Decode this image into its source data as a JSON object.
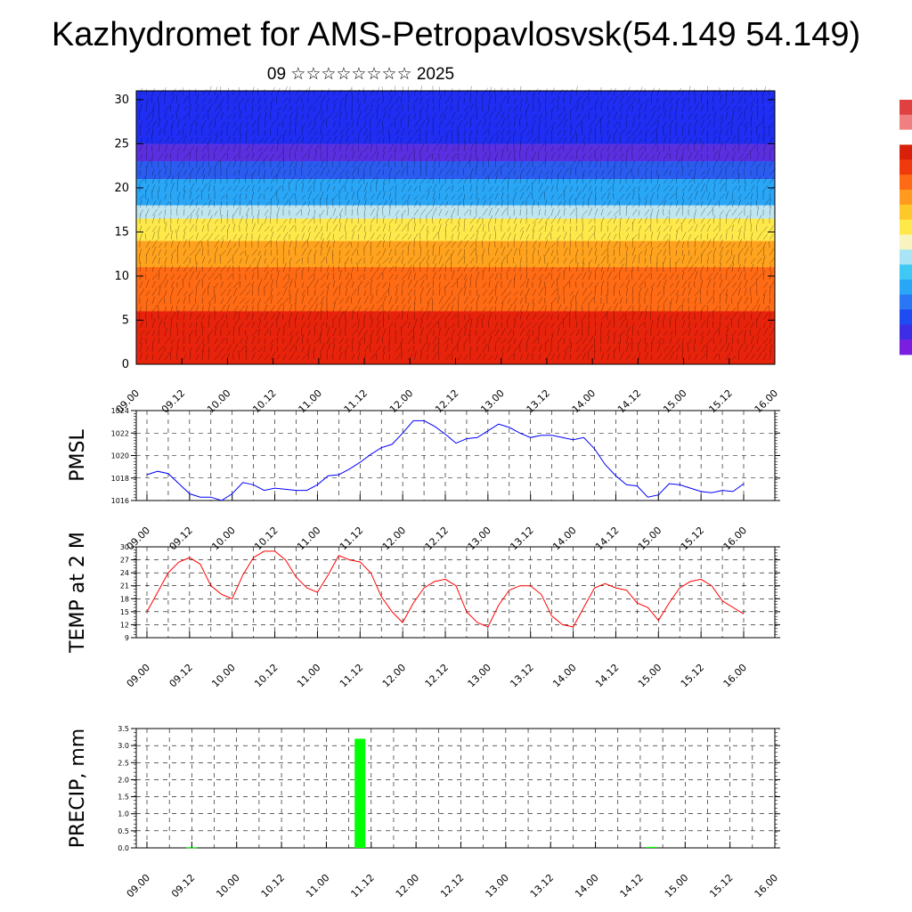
{
  "header": {
    "title": "Kazhydromet for AMS-Petropavlosvsk(54.149 54.149)",
    "subtitle": "09 ☆☆☆☆☆☆☆☆ 2025"
  },
  "colors": {
    "pmsl_line": "#0000ff",
    "temp_line": "#ff0000",
    "precip_bar": "#00ff00",
    "grid": "#000000",
    "colorbar": [
      "#7a1fe0",
      "#3d2ee6",
      "#1f4cf2",
      "#2a76f5",
      "#2aa6f7",
      "#40c8f5",
      "#a8e4f5",
      "#f8f4c0",
      "#ffe94a",
      "#ffc82a",
      "#ff9a1e",
      "#ff6a14",
      "#f03a0e",
      "#d8200a",
      "#ffffff",
      "#f08080",
      "#e04040"
    ]
  },
  "chart_data": [
    {
      "type": "heatmap",
      "name": "cross-section",
      "title": "",
      "xlabel": "",
      "ylabel": "",
      "x_ticks": [
        "09.00",
        "09.12",
        "10.00",
        "10.12",
        "11.00",
        "11.12",
        "12.00",
        "12.12",
        "13.00",
        "13.12",
        "14.00",
        "14.12",
        "15.00",
        "15.12",
        "16.00"
      ],
      "y_ticks": [
        "0",
        "5",
        "10",
        "15",
        "20",
        "25",
        "30"
      ],
      "ylim": [
        0,
        31
      ],
      "bands": [
        {
          "from": 0,
          "to": 6,
          "color": "#e8230c"
        },
        {
          "from": 6,
          "to": 11,
          "color": "#ff6a14"
        },
        {
          "from": 11,
          "to": 14,
          "color": "#ffa21e"
        },
        {
          "from": 14,
          "to": 16.5,
          "color": "#ffe94a"
        },
        {
          "from": 16.5,
          "to": 18,
          "color": "#bfe6f0"
        },
        {
          "from": 18,
          "to": 21,
          "color": "#2aa6f7"
        },
        {
          "from": 21,
          "to": 23,
          "color": "#2a5cf0"
        },
        {
          "from": 23,
          "to": 25,
          "color": "#5a2fe0"
        },
        {
          "from": 25,
          "to": 31,
          "color": "#1f2ef2"
        }
      ]
    },
    {
      "type": "line",
      "name": "pmsl",
      "ylabel": "PMSL",
      "ylim": [
        1016,
        1024
      ],
      "y_ticks": [
        "1016",
        "1018",
        "1020",
        "1022",
        "1024"
      ],
      "x_ticks": [
        "09.00",
        "09.12",
        "10.00",
        "10.12",
        "11.00",
        "11.12",
        "12.00",
        "12.12",
        "13.00",
        "13.12",
        "14.00",
        "14.12",
        "15.00",
        "15.12",
        "16.00"
      ],
      "x": [
        0,
        3,
        6,
        9,
        12,
        15,
        18,
        21,
        24,
        27,
        30,
        33,
        36,
        39,
        42,
        45,
        48,
        51,
        54,
        57,
        60,
        63,
        66,
        69,
        72,
        75,
        78,
        81,
        84,
        87,
        90,
        93,
        96,
        99,
        102,
        105,
        108,
        111,
        114,
        117,
        120,
        123,
        126,
        129,
        132,
        135,
        138,
        141,
        144,
        147,
        150,
        153,
        156,
        159,
        162,
        165,
        168
      ],
      "values": [
        1018.3,
        1018.6,
        1018.4,
        1017.5,
        1016.6,
        1016.3,
        1016.3,
        1016.0,
        1016.6,
        1017.6,
        1017.4,
        1016.9,
        1017.1,
        1017.0,
        1016.9,
        1016.9,
        1017.4,
        1018.2,
        1018.3,
        1018.8,
        1019.4,
        1020.1,
        1020.7,
        1021.0,
        1022.0,
        1023.1,
        1023.1,
        1022.6,
        1021.9,
        1021.1,
        1021.5,
        1021.6,
        1022.2,
        1022.8,
        1022.5,
        1022.0,
        1021.6,
        1021.8,
        1021.8,
        1021.6,
        1021.4,
        1021.6,
        1020.6,
        1019.2,
        1018.2,
        1017.4,
        1017.3,
        1016.3,
        1016.5,
        1017.5,
        1017.4,
        1017.1,
        1016.8,
        1016.7,
        1016.9,
        1016.8,
        1017.5
      ]
    },
    {
      "type": "line",
      "name": "temp",
      "ylabel": "TEMP at 2 M",
      "ylim": [
        9,
        30
      ],
      "y_ticks": [
        "9",
        "12",
        "15",
        "18",
        "21",
        "24",
        "27",
        "30"
      ],
      "x_ticks": [
        "09.00",
        "09.12",
        "10.00",
        "10.12",
        "11.00",
        "11.12",
        "12.00",
        "12.12",
        "13.00",
        "13.12",
        "14.00",
        "14.12",
        "15.00",
        "15.12",
        "16.00"
      ],
      "x": [
        0,
        3,
        6,
        9,
        12,
        15,
        18,
        21,
        24,
        27,
        30,
        33,
        36,
        39,
        42,
        45,
        48,
        51,
        54,
        57,
        60,
        63,
        66,
        69,
        72,
        75,
        78,
        81,
        84,
        87,
        90,
        93,
        96,
        99,
        102,
        105,
        108,
        111,
        114,
        117,
        120,
        123,
        126,
        129,
        132,
        135,
        138,
        141,
        144,
        147,
        150,
        153,
        156,
        159,
        162,
        165,
        168
      ],
      "values": [
        15.0,
        19.5,
        24.0,
        26.5,
        27.5,
        26.0,
        21.0,
        19.0,
        18.0,
        23.5,
        27.5,
        29.0,
        29.0,
        27.0,
        23.0,
        20.5,
        19.5,
        23.5,
        28.0,
        27.0,
        26.5,
        24.0,
        18.5,
        15.0,
        12.5,
        17.0,
        20.5,
        22.0,
        22.5,
        21.0,
        15.0,
        12.5,
        11.5,
        16.5,
        20.0,
        21.0,
        21.0,
        19.0,
        14.0,
        12.0,
        11.5,
        16.0,
        20.5,
        21.5,
        20.5,
        20.0,
        17.0,
        16.0,
        13.0,
        17.0,
        20.5,
        22.0,
        22.5,
        21.0,
        17.5,
        16.0,
        14.5
      ]
    },
    {
      "type": "bar",
      "name": "precip",
      "ylabel": "PRECIP, mm",
      "ylim": [
        0,
        3.5
      ],
      "y_ticks": [
        "0.0",
        "0.5",
        "1.0",
        "1.5",
        "2.0",
        "2.5",
        "3.0",
        "3.5"
      ],
      "x_ticks": [
        "09.00",
        "09.12",
        "10.00",
        "10.12",
        "11.00",
        "11.12",
        "12.00",
        "12.12",
        "13.00",
        "13.12",
        "14.00",
        "14.12",
        "15.00",
        "15.12",
        "16.00"
      ],
      "x": [
        12,
        57,
        135
      ],
      "values": [
        0.02,
        3.2,
        0.03
      ]
    }
  ]
}
